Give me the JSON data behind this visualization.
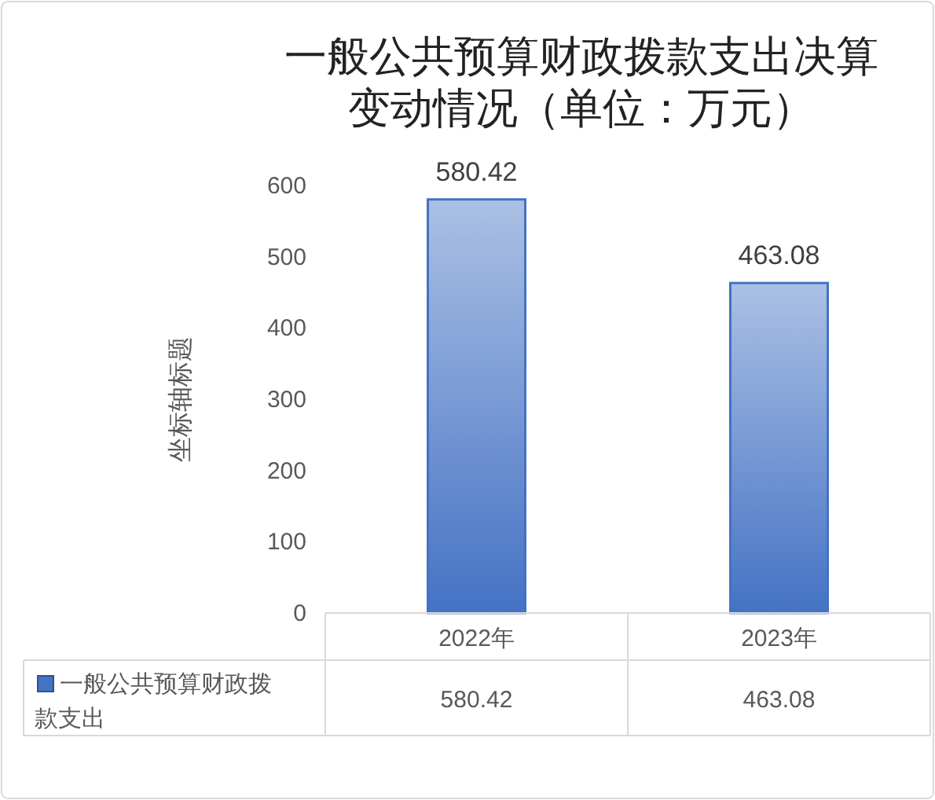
{
  "chart_data": {
    "type": "bar",
    "title": "一般公共预算财政拨款支出决算变动情况（单位：万元）",
    "ylabel": "坐标轴标题",
    "categories": [
      "2022年",
      "2023年"
    ],
    "series": [
      {
        "name": "一般公共预算财政拨款支出",
        "color": "#4472c4",
        "values": [
          580.42,
          463.08
        ],
        "value_labels": [
          "580.42",
          "463.08"
        ]
      }
    ],
    "ylim": [
      0,
      600
    ],
    "yticks": [
      0,
      100,
      200,
      300,
      400,
      500,
      600
    ],
    "data_labels": true,
    "legend": "bottom"
  }
}
